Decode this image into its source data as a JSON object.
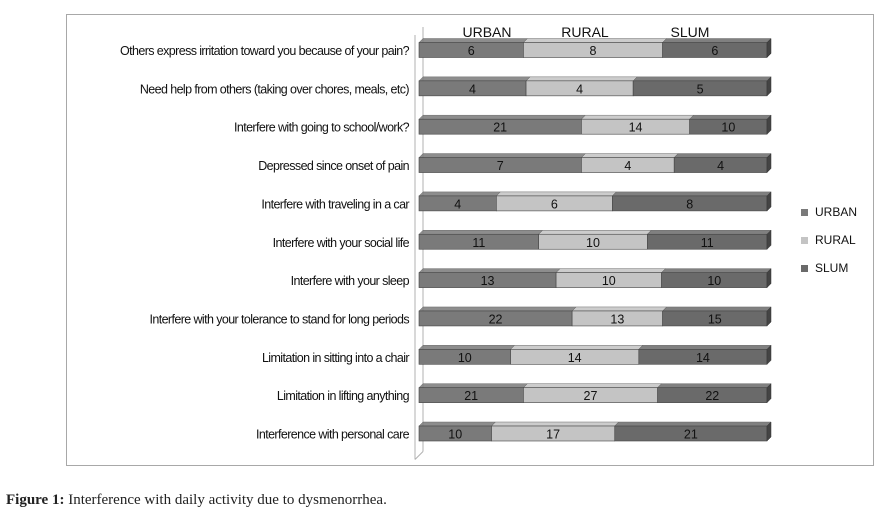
{
  "caption": {
    "label": "Figure 1:",
    "text": " Interference with daily activity due to dysmenorrhea."
  },
  "chart_data": {
    "type": "bar",
    "orientation": "horizontal",
    "stacking": "percent",
    "title": "",
    "legend_position": "right",
    "categories": [
      "Others express irritation  toward you because of your pain?",
      "Need help from others (taking over chores, meals, etc)",
      "Interfere with going to school/work?",
      "Depressed since onset of pain",
      "Interfere with traveling in a car",
      "Interfere with your social life",
      "Interfere with your sleep",
      "Interfere with your tolerance to stand for long periods",
      "Limitation in sitting into a chair",
      "Limitation in lifting anything",
      "Interference with personal care"
    ],
    "series": [
      {
        "name": "URBAN",
        "color": "#7a7a7a",
        "values": [
          6,
          4,
          21,
          7,
          4,
          11,
          13,
          22,
          10,
          21,
          10
        ]
      },
      {
        "name": "RURAL",
        "color": "#c4c4c4",
        "values": [
          8,
          4,
          14,
          4,
          6,
          10,
          10,
          13,
          14,
          27,
          17
        ]
      },
      {
        "name": "SLUM",
        "color": "#6a6a6a",
        "values": [
          6,
          5,
          10,
          4,
          8,
          11,
          10,
          15,
          14,
          22,
          21
        ]
      }
    ]
  }
}
